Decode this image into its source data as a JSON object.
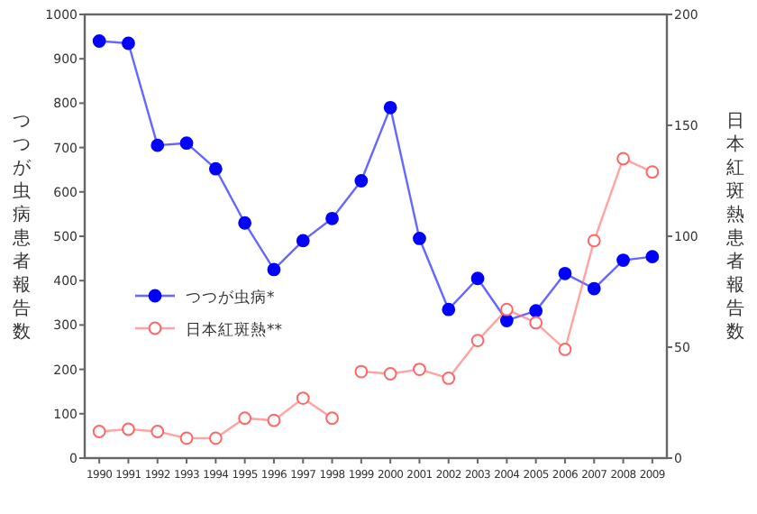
{
  "chart_data": {
    "type": "line",
    "categories": [
      "1990",
      "1991",
      "1992",
      "1993",
      "1994",
      "1995",
      "1996",
      "1997",
      "1998",
      "1999",
      "2000",
      "2001",
      "2002",
      "2003",
      "2004",
      "2005",
      "2006",
      "2007",
      "2008",
      "2009"
    ],
    "series": [
      {
        "name": "つつが虫病*",
        "color": "#0000ff",
        "marker": "circle",
        "values": [
          940,
          935,
          705,
          710,
          652,
          530,
          425,
          490,
          540,
          625,
          790,
          495,
          335,
          405,
          310,
          332,
          416,
          382,
          446,
          454
        ]
      },
      {
        "name": "日本紅斑熱**",
        "color": "#ff6666",
        "marker": "circle",
        "axis": "y2",
        "values": [
          12,
          13,
          12,
          9,
          9,
          18,
          17,
          27,
          18,
          null,
          null,
          null,
          null,
          null,
          null,
          null,
          null,
          null,
          null,
          null
        ]
      },
      {
        "color": "#ff6666",
        "marker": "circle",
        "axis": "y2",
        "values": [
          null,
          null,
          null,
          null,
          null,
          null,
          null,
          null,
          null,
          39,
          38,
          40,
          36,
          53,
          67,
          61,
          49,
          98,
          135,
          129
        ]
      }
    ],
    "ylim": [
      0,
      1000
    ],
    "yticks": [
      0,
      100,
      200,
      300,
      400,
      500,
      600,
      700,
      800,
      900,
      1000
    ],
    "y2lim": [
      0,
      200
    ],
    "y2ticks": [
      0,
      50,
      100,
      150,
      200
    ],
    "ylabel": "つつが虫病患者報告数",
    "y2label": "日本紅斑熱患者報告数",
    "legend": "left",
    "grid": false
  }
}
